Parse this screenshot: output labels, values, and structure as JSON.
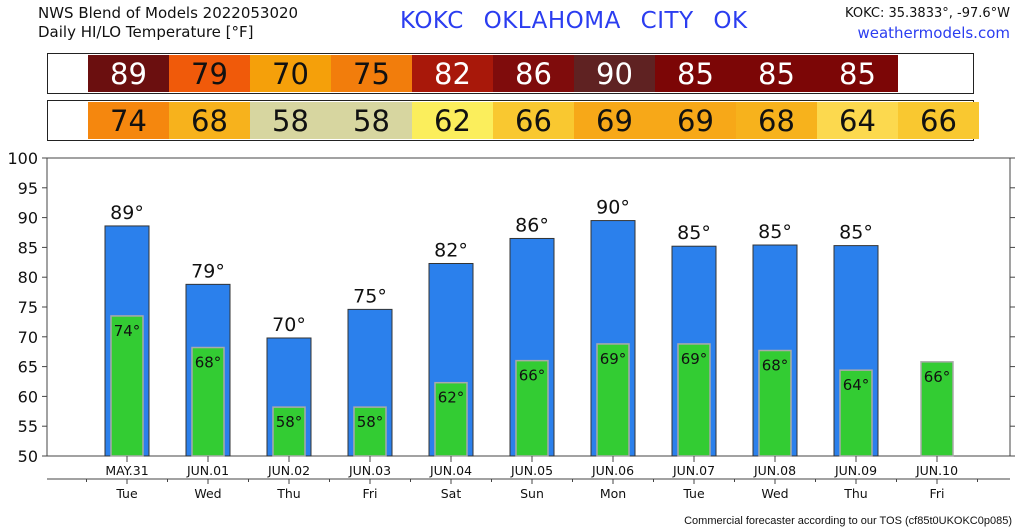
{
  "header": {
    "line1": "NWS Blend of Models 2022053020",
    "line2": "Daily HI/LO Temperature [°F]",
    "station": "KOKC   OKLAHOMA CITY   OK",
    "coords": "KOKC: 35.3833°, -97.6°W",
    "site": "weathermodels.com"
  },
  "footer": "Commercial forecaster according to our TOS (cf85t0UKOKC0p085)",
  "colors": {
    "hi_bar": "#2b80ec",
    "lo_bar": "#33cc33",
    "strip": {
      "89": "#6b0f0f",
      "79": "#f05a0a",
      "70": "#f5a00a",
      "75": "#f27d0c",
      "82": "#a8180a",
      "86": "#7f0c0c",
      "90": "#5f2222",
      "85": "#7c0606",
      "74": "#f5870e",
      "68": "#f7b21c",
      "58": "#d7d6a0",
      "62": "#fbee5c",
      "66": "#f9c830",
      "69": "#f7a818",
      "64": "#fcd94e"
    }
  },
  "chart_data": {
    "type": "bar",
    "categories": [
      "MAY.31",
      "JUN.01",
      "JUN.02",
      "JUN.03",
      "JUN.04",
      "JUN.05",
      "JUN.06",
      "JUN.07",
      "JUN.08",
      "JUN.09",
      "JUN.10"
    ],
    "weekdays": [
      "Tue",
      "Wed",
      "Thu",
      "Fri",
      "Sat",
      "Sun",
      "Mon",
      "Tue",
      "Wed",
      "Thu",
      "Fri"
    ],
    "hi_bar_values": [
      88.6,
      78.8,
      69.8,
      74.6,
      82.3,
      86.5,
      89.5,
      85.2,
      85.4,
      85.3,
      null
    ],
    "lo_bar_values": [
      73.5,
      68.2,
      58.2,
      58.2,
      62.3,
      66.0,
      68.8,
      68.8,
      67.7,
      64.4,
      65.8
    ],
    "hi_labels": [
      "89",
      "79",
      "70",
      "75",
      "82",
      "86",
      "90",
      "85",
      "85",
      "85",
      ""
    ],
    "lo_labels": [
      "74",
      "68",
      "58",
      "58",
      "62",
      "66",
      "69",
      "69",
      "68",
      "64",
      "66"
    ],
    "degree_symbol": "°",
    "ylim": [
      50,
      100
    ],
    "yticks": [
      50,
      55,
      60,
      65,
      70,
      75,
      80,
      85,
      90,
      95,
      100
    ],
    "grid": false,
    "strip_hi": [
      "89",
      "79",
      "70",
      "75",
      "82",
      "86",
      "90",
      "85",
      "85",
      "85",
      ""
    ],
    "strip_lo": [
      "74",
      "68",
      "58",
      "58",
      "62",
      "66",
      "69",
      "69",
      "68",
      "64",
      "66"
    ]
  }
}
